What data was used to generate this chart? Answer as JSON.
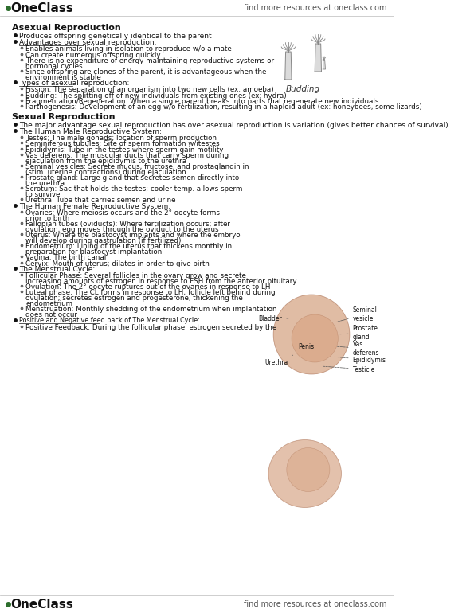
{
  "bg_color": "#ffffff",
  "text_color": "#111111",
  "top_logo_text": "OneClass",
  "top_right_text": "find more resources at oneclass.com",
  "bottom_logo_text": "OneClass",
  "bottom_right_text": "find more resources at oneclass.com",
  "content": [
    {
      "type": "section",
      "text": "Asexual Reproduction"
    },
    {
      "type": "bullet1",
      "text": "Produces offspring genetically identical to the parent"
    },
    {
      "type": "bullet1_underline",
      "text": "Advantages over sexual reproduction:"
    },
    {
      "type": "bullet2",
      "text": "Enables animals living in isolation to reproduce w/o a mate"
    },
    {
      "type": "bullet2",
      "text": "Can create numerous offspring quickly"
    },
    {
      "type": "bullet2",
      "text": "There is no expenditure of energy-maintaining reproductive systems or\nhormonal cycles"
    },
    {
      "type": "bullet2",
      "text": "Since offspring are clones of the parent, it is advantageous when the\nenvironment is stable"
    },
    {
      "type": "bullet1_underline",
      "text": "Types of asexual reproduction:"
    },
    {
      "type": "bullet2",
      "text": "Fission: The separation of an organism into two new cells (ex: amoeba)"
    },
    {
      "type": "bullet2",
      "text": "Budding: The splitting off of new individuals from existing ones (ex: hydra)"
    },
    {
      "type": "bullet2",
      "text": "Fragmentation/Regeneration: When a single parent breaks into parts that regenerate new individuals"
    },
    {
      "type": "bullet2",
      "text": "Parthogenesis: Development of an egg w/o fertilization, resulting in a haploid adult (ex: honeybees, some lizards)"
    },
    {
      "type": "section",
      "text": "Sexual Reproduction"
    },
    {
      "type": "bullet1",
      "text": "The major advantage sexual reproduction has over asexual reproduction is variation (gives better chances of survival)"
    },
    {
      "type": "bullet1_underline",
      "text": "The Human Male Reproductive System:"
    },
    {
      "type": "bullet2",
      "text": "Testes: The male gonads; location of sperm production"
    },
    {
      "type": "bullet2",
      "text": "Seminiferous tubules: Site of sperm formation w/itestes"
    },
    {
      "type": "bullet2",
      "text": "Epididymis: Tube in the testes where sperm gain motility"
    },
    {
      "type": "bullet2",
      "text": "Vas deferens: The muscular ducts that carry sperm during\nejaculation from the epididymis to the urethra"
    },
    {
      "type": "bullet2",
      "text": "Seminal vesicles: Secrete mucus, fructose, and prostaglandin in\n(stim. uterine contractions) during ejaculation"
    },
    {
      "type": "bullet2",
      "text": "Prostate gland: Large gland that secretes semen directly into\nthe urethra"
    },
    {
      "type": "bullet2",
      "text": "Scrotum: Sac that holds the testes; cooler temp. allows sperm\nto survive"
    },
    {
      "type": "bullet2",
      "text": "Urethra: Tube that carries semen and urine"
    },
    {
      "type": "bullet1_underline",
      "text": "The Human Female Reproductive System:"
    },
    {
      "type": "bullet2",
      "text": "Ovaries: Where meiosis occurs and the 2° oocyte forms\nprior to birth"
    },
    {
      "type": "bullet2",
      "text": "Fallopian tubes (oviducts): Where fertilization occurs; after\novulation, egg moves through the oviduct to the uterus"
    },
    {
      "type": "bullet2",
      "text": "Uterus: Where the blastocyst implants and where the embryo\nwill develop during gastrulation (if fertilized)"
    },
    {
      "type": "bullet2",
      "text": "Endometrium: Lining of the uterus that thickens monthly in\npreparation for blastocyst implantation"
    },
    {
      "type": "bullet2",
      "text": "Vagina: The birth canal"
    },
    {
      "type": "bullet2",
      "text": "Cervix: Mouth of uterus; dilates in order to give birth"
    },
    {
      "type": "bullet1_underline",
      "text": "The Menstrual Cycle:"
    },
    {
      "type": "bullet2",
      "text": "Follicular Phase: Several follicles in the ovary grow and secrete\nincreasing amounts of estrogen in response to FSH from the anterior pituitary"
    },
    {
      "type": "bullet2",
      "text": "Ovulation: The 2° oocyte ruptures out of the ovaries in response to LH"
    },
    {
      "type": "bullet2",
      "text": "Luteal phase: The CL forms in response to LH; follicle left behind during\novulation; secretes estrogen and progesterone, thickening the\nendometrium"
    },
    {
      "type": "bullet2",
      "text": "Menstruation: Monthly shedding of the endometrium when implantation\ndoes not occur"
    },
    {
      "type": "bullet1_underline_small",
      "text": "Positive and Negative feed back of The Menstrual Cycle:"
    },
    {
      "type": "bullet2",
      "text": "Positive Feedback: During the follicular phase, estrogen secreted by the"
    }
  ]
}
